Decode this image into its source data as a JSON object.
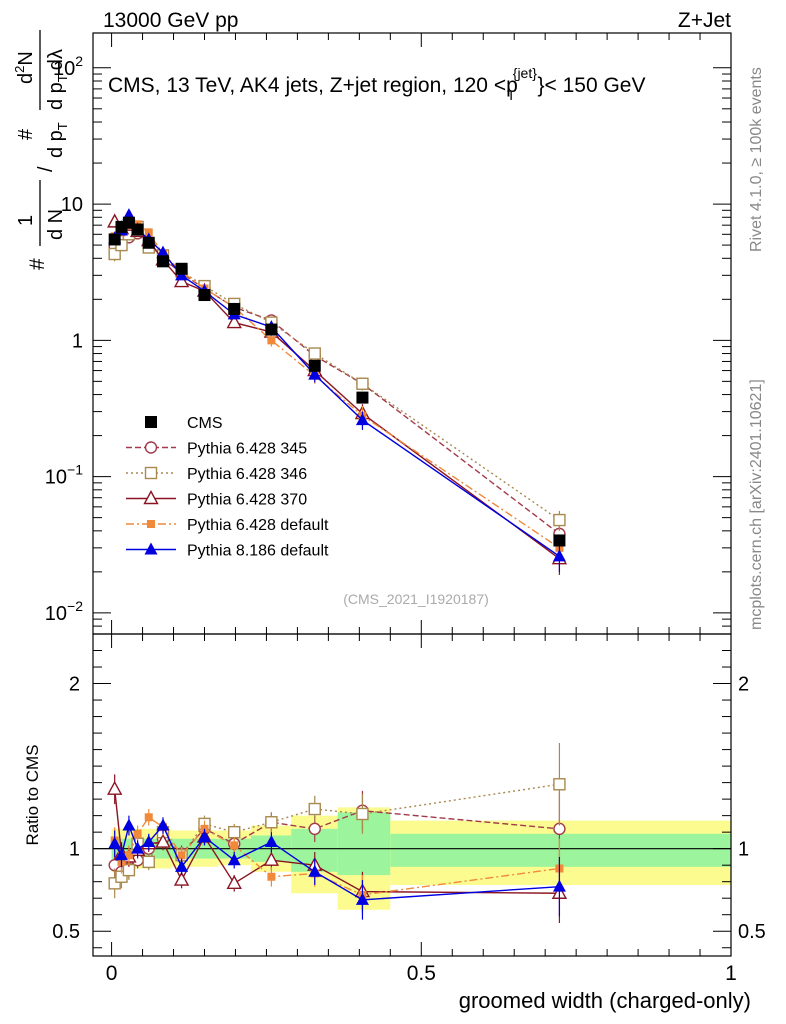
{
  "header": {
    "left": "13000 GeV pp",
    "right": "Z+Jet",
    "title": "CMS, 13 TeV, AK4 jets, Z+jet region, 120 <p",
    "title_sup": "{jet}",
    "title_sub": "T",
    "title_end": "}< 150 GeV",
    "side_top": "Rivet 4.1.0, ≥ 100k events",
    "side_bottom": "mcplots.cern.ch [arXiv:2401.10621]",
    "analysis_id": "(CMS_2021_I1920187)"
  },
  "colors": {
    "cms": "#000000",
    "p345": "#a33a4a",
    "p346": "#a8894e",
    "p370": "#8b1423",
    "p6def": "#f08a3a",
    "p8def": "#0000e0",
    "band_inner": "#9cf59c",
    "band_outer": "#fbfb90"
  },
  "chart_data": [
    {
      "type": "line",
      "scale": "log",
      "ylabel_num": "1",
      "ylabel_den": "N",
      "ylabel_frac_num": "d",
      "ylabel_frac_num2": "N",
      "ylabel_frac_den": "d p",
      "ylabel_frac_den_sub": "T",
      "ylabel_frac_den2": "dλ",
      "ylabel_pfx": "#",
      "ylim": [
        0.007,
        180
      ],
      "x": [
        0.005,
        0.016,
        0.028,
        0.042,
        0.06,
        0.083,
        0.113,
        0.15,
        0.198,
        0.258,
        0.328,
        0.405,
        0.723
      ],
      "yticks": [
        {
          "v": 0.01,
          "base": "10",
          "exp": "−2"
        },
        {
          "v": 0.1,
          "base": "10",
          "exp": "−1"
        },
        {
          "v": 1,
          "base": "1",
          "exp": ""
        },
        {
          "v": 10,
          "base": "10",
          "exp": ""
        },
        {
          "v": 100,
          "base": "10",
          "exp": "2"
        }
      ],
      "cms": {
        "name": "CMS",
        "x": [
          0.005,
          0.016,
          0.028,
          0.042,
          0.06,
          0.083,
          0.113,
          0.15,
          0.198,
          0.258,
          0.328,
          0.405,
          0.723
        ],
        "y": [
          5.5,
          6.8,
          7.3,
          6.5,
          5.2,
          3.8,
          3.35,
          2.15,
          1.7,
          1.2,
          0.65,
          0.38,
          0.034
        ]
      },
      "series": [
        {
          "name": "Pythia 6.428 345",
          "key": "p345",
          "marker": "circle-open",
          "dash": "6,3",
          "y": [
            4.9,
            5.4,
            5.7,
            6.1,
            5.0,
            4.0,
            3.1,
            2.4,
            1.75,
            1.4,
            0.77,
            0.48,
            0.038
          ],
          "err": [
            0.5,
            0.4,
            0.4,
            0.4,
            0.3,
            0.25,
            0.2,
            0.15,
            0.12,
            0.1,
            0.07,
            0.05,
            0.008
          ]
        },
        {
          "name": "Pythia 6.428 346",
          "key": "p346",
          "marker": "square-open",
          "dash": "2,3",
          "y": [
            4.3,
            5.0,
            6.0,
            6.8,
            4.8,
            4.2,
            3.2,
            2.5,
            1.85,
            1.35,
            0.8,
            0.48,
            0.048
          ],
          "err": [
            0.5,
            0.4,
            0.4,
            0.4,
            0.3,
            0.25,
            0.2,
            0.15,
            0.12,
            0.1,
            0.07,
            0.05,
            0.008
          ]
        },
        {
          "name": "Pythia 6.428 370",
          "key": "p370",
          "marker": "triangle-open",
          "dash": "",
          "y": [
            7.4,
            6.6,
            7.0,
            6.3,
            5.4,
            3.9,
            2.7,
            2.3,
            1.35,
            1.15,
            0.6,
            0.29,
            0.025
          ],
          "err": [
            0.5,
            0.4,
            0.4,
            0.4,
            0.3,
            0.25,
            0.2,
            0.15,
            0.12,
            0.1,
            0.07,
            0.05,
            0.006
          ]
        },
        {
          "name": "Pythia 6.428 default",
          "key": "p6def",
          "marker": "square-filled-small",
          "dash": "8,3,2,3",
          "y": [
            5.8,
            6.2,
            7.0,
            7.1,
            6.2,
            4.3,
            3.2,
            2.4,
            1.75,
            1.0,
            0.55,
            0.28,
            0.03
          ],
          "err": [
            0.5,
            0.4,
            0.4,
            0.4,
            0.3,
            0.25,
            0.2,
            0.15,
            0.12,
            0.1,
            0.07,
            0.05,
            0.006
          ]
        },
        {
          "name": "Pythia 8.186 default",
          "key": "p8def",
          "marker": "triangle-filled",
          "dash": "",
          "y": [
            5.6,
            6.4,
            8.3,
            6.5,
            5.5,
            4.4,
            3.0,
            2.3,
            1.55,
            1.25,
            0.56,
            0.26,
            0.026
          ],
          "err": [
            0.5,
            0.4,
            0.5,
            0.4,
            0.3,
            0.25,
            0.2,
            0.15,
            0.12,
            0.1,
            0.07,
            0.04,
            0.006
          ]
        }
      ]
    },
    {
      "type": "line",
      "ylabel": "Ratio to CMS",
      "xlabel": "groomed width (charged-only)",
      "ylim": [
        0.35,
        2.3
      ],
      "xlim": [
        -0.03,
        1.0
      ],
      "xticks": [
        {
          "v": 0,
          "label": "0"
        },
        {
          "v": 0.5,
          "label": "0.5"
        },
        {
          "v": 1,
          "label": "1"
        }
      ],
      "yticks": [
        {
          "v": 0.5,
          "label": "0.5"
        },
        {
          "v": 1,
          "label": "1"
        },
        {
          "v": 2,
          "label": "2"
        }
      ],
      "bands": [
        {
          "x0": 0.0,
          "x1": 0.01,
          "inner": [
            0.93,
            1.06
          ],
          "outer": [
            0.86,
            1.12
          ]
        },
        {
          "x0": 0.01,
          "x1": 0.022,
          "inner": [
            0.93,
            1.06
          ],
          "outer": [
            0.86,
            1.12
          ]
        },
        {
          "x0": 0.022,
          "x1": 0.035,
          "inner": [
            0.93,
            1.06
          ],
          "outer": [
            0.86,
            1.12
          ]
        },
        {
          "x0": 0.035,
          "x1": 0.05,
          "inner": [
            0.94,
            1.06
          ],
          "outer": [
            0.88,
            1.12
          ]
        },
        {
          "x0": 0.05,
          "x1": 0.07,
          "inner": [
            0.94,
            1.06
          ],
          "outer": [
            0.88,
            1.12
          ]
        },
        {
          "x0": 0.07,
          "x1": 0.097,
          "inner": [
            0.94,
            1.06
          ],
          "outer": [
            0.88,
            1.12
          ]
        },
        {
          "x0": 0.097,
          "x1": 0.13,
          "inner": [
            0.94,
            1.06
          ],
          "outer": [
            0.89,
            1.11
          ]
        },
        {
          "x0": 0.13,
          "x1": 0.172,
          "inner": [
            0.94,
            1.06
          ],
          "outer": [
            0.89,
            1.11
          ]
        },
        {
          "x0": 0.172,
          "x1": 0.225,
          "inner": [
            0.94,
            1.06
          ],
          "outer": [
            0.9,
            1.11
          ]
        },
        {
          "x0": 0.225,
          "x1": 0.29,
          "inner": [
            0.92,
            1.08
          ],
          "outer": [
            0.86,
            1.14
          ]
        },
        {
          "x0": 0.29,
          "x1": 0.365,
          "inner": [
            0.86,
            1.12
          ],
          "outer": [
            0.73,
            1.2
          ]
        },
        {
          "x0": 0.365,
          "x1": 0.45,
          "inner": [
            0.84,
            1.22
          ],
          "outer": [
            0.63,
            1.25
          ]
        },
        {
          "x0": 0.45,
          "x1": 1.0,
          "inner": [
            0.89,
            1.09
          ],
          "outer": [
            0.78,
            1.17
          ]
        }
      ],
      "series": [
        {
          "key": "p345",
          "marker": "circle-open",
          "dash": "6,3",
          "y": [
            0.9,
            0.86,
            0.88,
            0.93,
            1.0,
            1.06,
            0.97,
            1.12,
            1.03,
            1.16,
            1.12,
            1.23,
            1.12
          ],
          "err": [
            0.08,
            0.07,
            0.06,
            0.05,
            0.05,
            0.05,
            0.05,
            0.05,
            0.05,
            0.06,
            0.08,
            0.12,
            0.22
          ]
        },
        {
          "key": "p346",
          "marker": "square-open",
          "dash": "2,3",
          "y": [
            0.79,
            0.83,
            0.87,
            1.03,
            0.92,
            1.1,
            0.96,
            1.15,
            1.1,
            1.16,
            1.24,
            1.21,
            1.39
          ],
          "err": [
            0.09,
            0.07,
            0.06,
            0.05,
            0.05,
            0.05,
            0.05,
            0.05,
            0.05,
            0.06,
            0.08,
            0.12,
            0.25
          ]
        },
        {
          "key": "p370",
          "marker": "triangle-open",
          "dash": "",
          "y": [
            1.36,
            0.97,
            0.95,
            0.99,
            1.03,
            1.04,
            0.81,
            1.07,
            0.79,
            0.93,
            0.9,
            0.74,
            0.73
          ],
          "err": [
            0.09,
            0.07,
            0.06,
            0.05,
            0.05,
            0.05,
            0.05,
            0.05,
            0.05,
            0.06,
            0.08,
            0.12,
            0.18
          ]
        },
        {
          "key": "p6def",
          "marker": "square-filled-small",
          "dash": "8,3,2,3",
          "y": [
            1.05,
            0.92,
            0.96,
            1.09,
            1.19,
            1.13,
            0.96,
            1.12,
            1.02,
            0.83,
            0.85,
            0.72,
            0.88
          ],
          "err": [
            0.08,
            0.07,
            0.06,
            0.05,
            0.05,
            0.05,
            0.05,
            0.05,
            0.05,
            0.06,
            0.08,
            0.12,
            0.18
          ]
        },
        {
          "key": "p8def",
          "marker": "triangle-filled",
          "dash": "",
          "y": [
            1.03,
            0.96,
            1.14,
            1.0,
            1.04,
            1.14,
            0.89,
            1.07,
            0.93,
            1.04,
            0.86,
            0.69,
            0.77
          ],
          "err": [
            0.08,
            0.07,
            0.06,
            0.05,
            0.05,
            0.05,
            0.05,
            0.05,
            0.05,
            0.06,
            0.08,
            0.12,
            0.18
          ]
        }
      ]
    }
  ]
}
